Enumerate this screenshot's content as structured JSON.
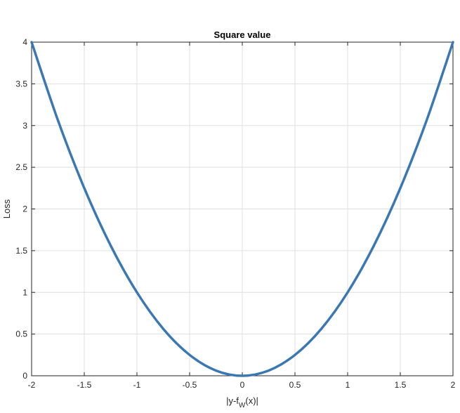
{
  "chart_data": {
    "type": "line",
    "title": "Square value",
    "xlabel": {
      "base": "|y-f",
      "subscript": "W",
      "suffix": "(x)|"
    },
    "ylabel": "Loss",
    "xlim": [
      -2,
      2
    ],
    "ylim": [
      0,
      4
    ],
    "xticks": [
      -2,
      -1.5,
      -1,
      -0.5,
      0,
      0.5,
      1,
      1.5,
      2
    ],
    "xtick_labels": [
      "-2",
      "-1.5",
      "-1",
      "-0.5",
      "0",
      "0.5",
      "1",
      "1.5",
      "2"
    ],
    "yticks": [
      0,
      0.5,
      1,
      1.5,
      2,
      2.5,
      3,
      3.5,
      4
    ],
    "ytick_labels": [
      "0",
      "0.5",
      "1",
      "1.5",
      "2",
      "2.5",
      "3",
      "3.5",
      "4"
    ],
    "grid": true,
    "series": [
      {
        "color": "#3a78b4",
        "x": [
          -2,
          -1.75,
          -1.5,
          -1.25,
          -1,
          -0.75,
          -0.5,
          -0.25,
          0,
          0.25,
          0.5,
          0.75,
          1,
          1.25,
          1.5,
          1.75,
          2
        ],
        "y": [
          4,
          3.0625,
          2.25,
          1.5625,
          1,
          0.5625,
          0.25,
          0.0625,
          0,
          0.0625,
          0.25,
          0.5625,
          1,
          1.5625,
          2.25,
          3.0625,
          4
        ]
      }
    ]
  }
}
